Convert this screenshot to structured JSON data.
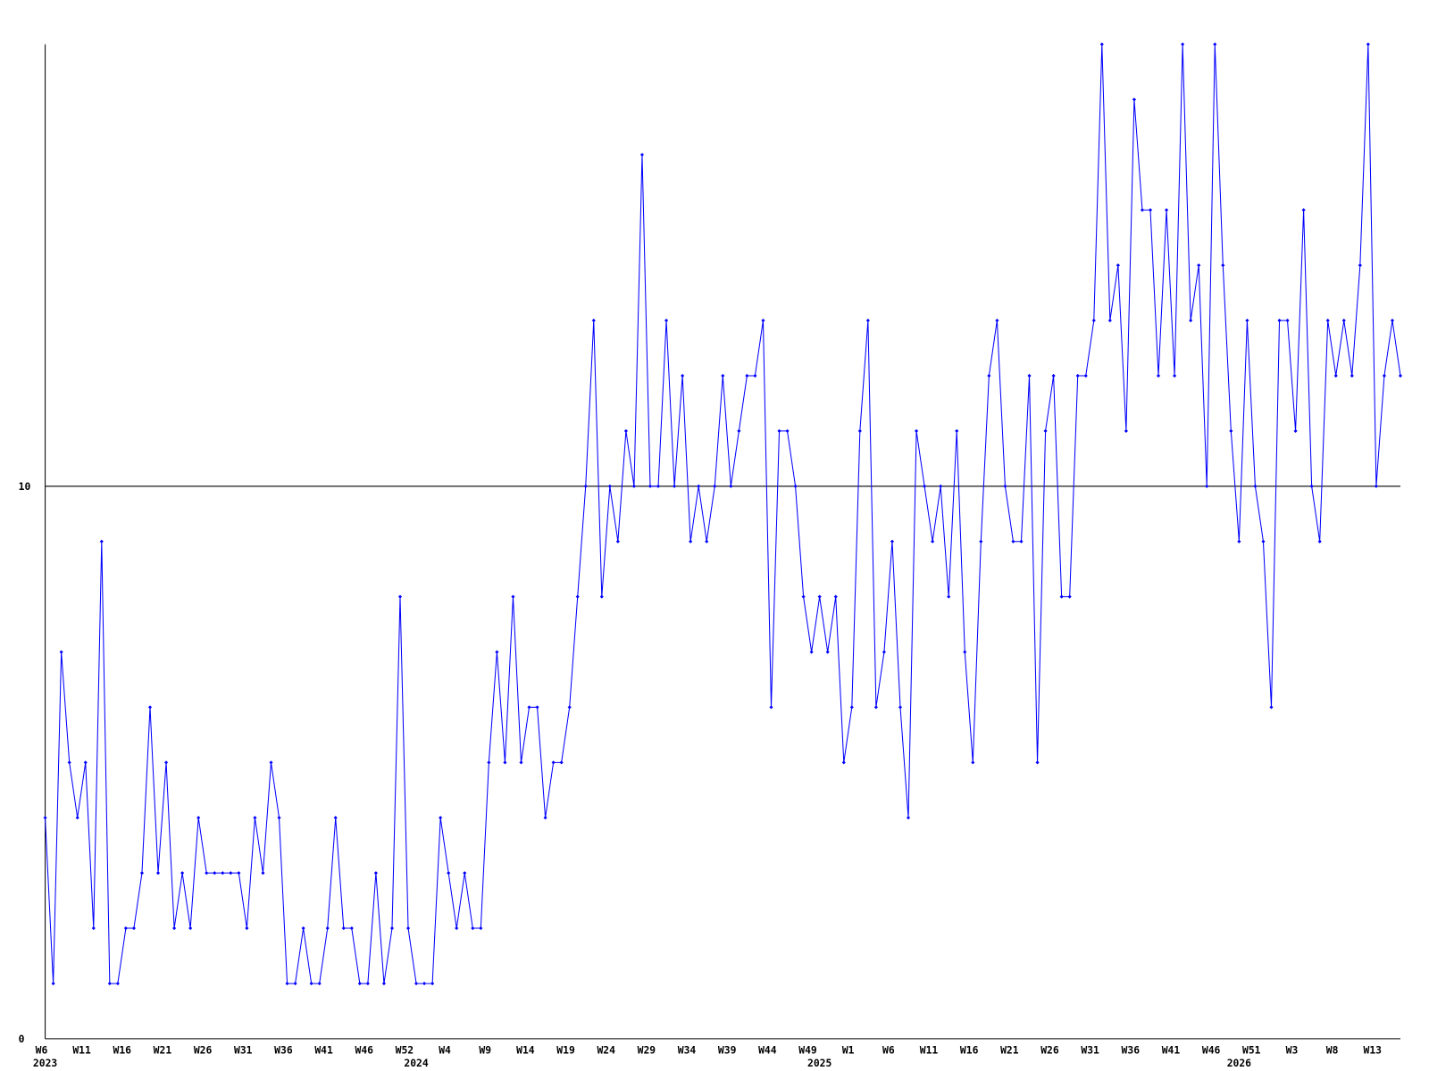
{
  "chart_data": {
    "type": "line",
    "color": "#0000ff",
    "ylim": [
      0,
      18
    ],
    "yticks": [
      0,
      10
    ],
    "grid": true,
    "categories": [
      "W6",
      null,
      null,
      null,
      null,
      "W11",
      null,
      null,
      null,
      null,
      "W16",
      null,
      null,
      null,
      null,
      "W21",
      null,
      null,
      null,
      null,
      "W26",
      null,
      null,
      null,
      null,
      "W31",
      null,
      null,
      null,
      null,
      "W36",
      null,
      null,
      null,
      null,
      "W41",
      null,
      null,
      null,
      null,
      "W46",
      null,
      null,
      null,
      null,
      "W52",
      null,
      null,
      null,
      null,
      "W4",
      null,
      null,
      null,
      null,
      "W9",
      null,
      null,
      null,
      null,
      "W14",
      null,
      null,
      null,
      null,
      "W19",
      null,
      null,
      null,
      null,
      "W24",
      null,
      null,
      null,
      null,
      "W29",
      null,
      null,
      null,
      null,
      "W34",
      null,
      null,
      null,
      null,
      "W39",
      null,
      null,
      null,
      null,
      "W44",
      null,
      null,
      null,
      null,
      "W49",
      null,
      null,
      null,
      null,
      "W1",
      null,
      null,
      null,
      null,
      "W6",
      null,
      null,
      null,
      null,
      "W11",
      null,
      null,
      null,
      null,
      "W16",
      null,
      null,
      null,
      null,
      "W21",
      null,
      null,
      null,
      null,
      "W26",
      null,
      null,
      null,
      null,
      "W31",
      null,
      null,
      null,
      null,
      "W36",
      null,
      null,
      null,
      null,
      "W41",
      null,
      null,
      null,
      null,
      "W46",
      null,
      null,
      null,
      null,
      "W51",
      null,
      null,
      null,
      null,
      "W3",
      null,
      null,
      null,
      null,
      "W8",
      null,
      null,
      null,
      null,
      "W13",
      null,
      null,
      null
    ],
    "year_labels": [
      "2023",
      null,
      null,
      null,
      null,
      null,
      null,
      null,
      null,
      null,
      null,
      null,
      null,
      null,
      null,
      null,
      null,
      null,
      null,
      null,
      null,
      null,
      null,
      null,
      null,
      null,
      null,
      null,
      null,
      null,
      null,
      null,
      null,
      null,
      null,
      null,
      null,
      null,
      null,
      null,
      null,
      null,
      null,
      null,
      null,
      null,
      "2024",
      null,
      null,
      null,
      null,
      null,
      null,
      null,
      null,
      null,
      null,
      null,
      null,
      null,
      null,
      null,
      null,
      null,
      null,
      null,
      null,
      null,
      null,
      null,
      null,
      null,
      null,
      null,
      null,
      null,
      null,
      null,
      null,
      null,
      null,
      null,
      null,
      null,
      null,
      null,
      null,
      null,
      null,
      null,
      null,
      null,
      null,
      null,
      null,
      null,
      "2025",
      null,
      null,
      null,
      null,
      null,
      null,
      null,
      null,
      null,
      null,
      null,
      null,
      null,
      null,
      null,
      null,
      null,
      null,
      null,
      null,
      null,
      null,
      null,
      null,
      null,
      null,
      null,
      null,
      null,
      null,
      null,
      null,
      null,
      null,
      null,
      null,
      null,
      null,
      null,
      null,
      null,
      null,
      null,
      null,
      null,
      null,
      null,
      null,
      null,
      null,
      null,
      "2026",
      null,
      null,
      null,
      null,
      null,
      null,
      null,
      null,
      null,
      null,
      null,
      null,
      null,
      null,
      null,
      null
    ],
    "values": [
      4,
      1,
      7,
      5,
      4,
      5,
      2,
      9,
      1,
      1,
      2,
      2,
      3,
      6,
      3,
      5,
      2,
      3,
      2,
      4,
      3,
      3,
      3,
      3,
      3,
      2,
      4,
      3,
      5,
      4,
      1,
      1,
      2,
      1,
      1,
      2,
      4,
      2,
      2,
      1,
      1,
      3,
      1,
      2,
      8,
      2,
      1,
      1,
      1,
      4,
      3,
      2,
      3,
      2,
      2,
      5,
      7,
      5,
      8,
      5,
      6,
      6,
      4,
      5,
      5,
      6,
      8,
      10,
      13,
      8,
      10,
      9,
      11,
      10,
      16,
      10,
      10,
      13,
      10,
      12,
      9,
      10,
      9,
      10,
      12,
      10,
      11,
      12,
      12,
      13,
      6,
      11,
      11,
      10,
      8,
      7,
      8,
      7,
      8,
      5,
      6,
      11,
      13,
      6,
      7,
      9,
      6,
      4,
      11,
      10,
      9,
      10,
      8,
      11,
      7,
      5,
      9,
      12,
      13,
      10,
      9,
      9,
      12,
      5,
      11,
      12,
      8,
      8,
      12,
      12,
      13,
      18,
      13,
      14,
      11,
      17,
      15,
      15,
      12,
      15,
      12,
      18,
      13,
      14,
      10,
      18,
      14,
      11,
      9,
      13,
      10,
      9,
      6,
      13,
      13,
      11,
      15,
      10,
      9,
      13,
      12,
      13,
      12,
      14,
      18,
      10,
      12,
      13,
      12
    ]
  }
}
